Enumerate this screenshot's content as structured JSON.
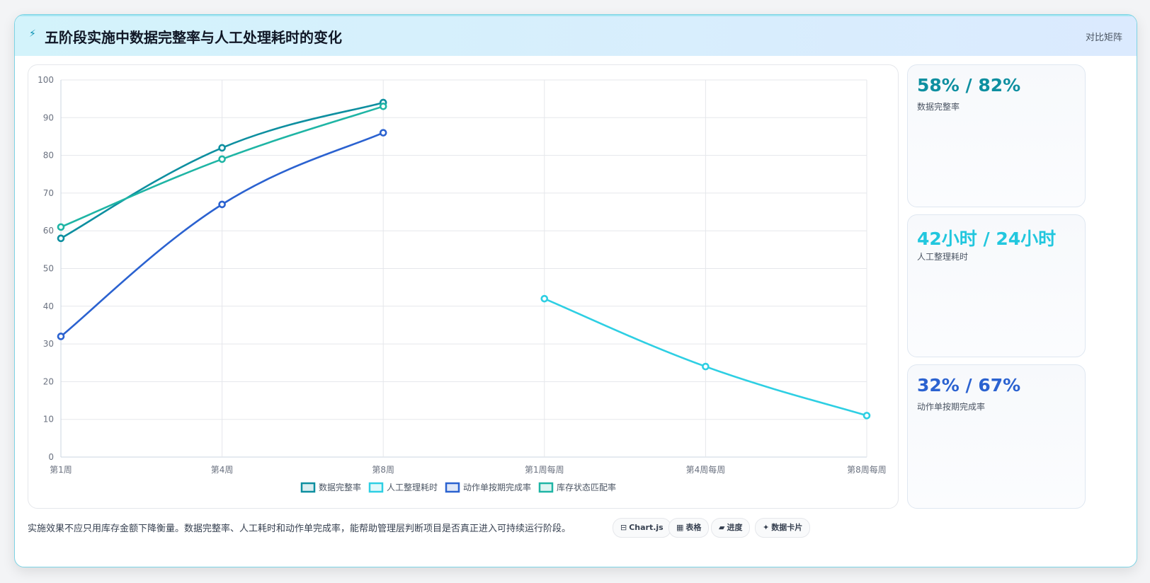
{
  "header": {
    "icon": "bolt-icon",
    "title": "五阶段实施中数据完整率与人工处理耗时的变化",
    "right_link": "对比矩阵"
  },
  "stats": [
    {
      "value": "58% / 82%",
      "label": "数据完整率",
      "color": "#0e8fa0"
    },
    {
      "value": "42小时 / 24小时",
      "label": "人工整理耗时",
      "color": "#22c7de"
    },
    {
      "value": "32% / 67%",
      "label": "动作单按期完成率",
      "color": "#2b62d0"
    }
  ],
  "footer": {
    "note": "实施效果不应只用库存金额下降衡量。数据完整率、人工耗时和动作单完成率，能帮助管理层判断项目是否真正进入可持续运行阶段。",
    "buttons": [
      {
        "icon": "⊟",
        "label": "Chart.js"
      },
      {
        "icon": "▦",
        "label": "表格"
      },
      {
        "icon": "▰",
        "label": "进度"
      },
      {
        "icon": "✦",
        "label": "数据卡片"
      }
    ]
  },
  "chart_data": {
    "type": "line",
    "categories": [
      "第1周",
      "第4周",
      "第8周",
      "第1周每周",
      "第4周每周",
      "第8周每周"
    ],
    "ylim": [
      0,
      100
    ],
    "yticks": [
      0,
      10,
      20,
      30,
      40,
      50,
      60,
      70,
      80,
      90,
      100
    ],
    "grid": true,
    "legend_position": "bottom",
    "series": [
      {
        "name": "数据完整率",
        "color": "#0e8fa0",
        "values": [
          58,
          82,
          94,
          null,
          null,
          null
        ]
      },
      {
        "name": "人工整理耗时",
        "color": "#2ecfe3",
        "values": [
          null,
          null,
          null,
          42,
          24,
          11
        ]
      },
      {
        "name": "动作单按期完成率",
        "color": "#2b62d0",
        "values": [
          32,
          67,
          86,
          null,
          null,
          null
        ]
      },
      {
        "name": "库存状态匹配率",
        "color": "#1fb5a5",
        "values": [
          61,
          79,
          93,
          null,
          null,
          null
        ]
      }
    ]
  }
}
